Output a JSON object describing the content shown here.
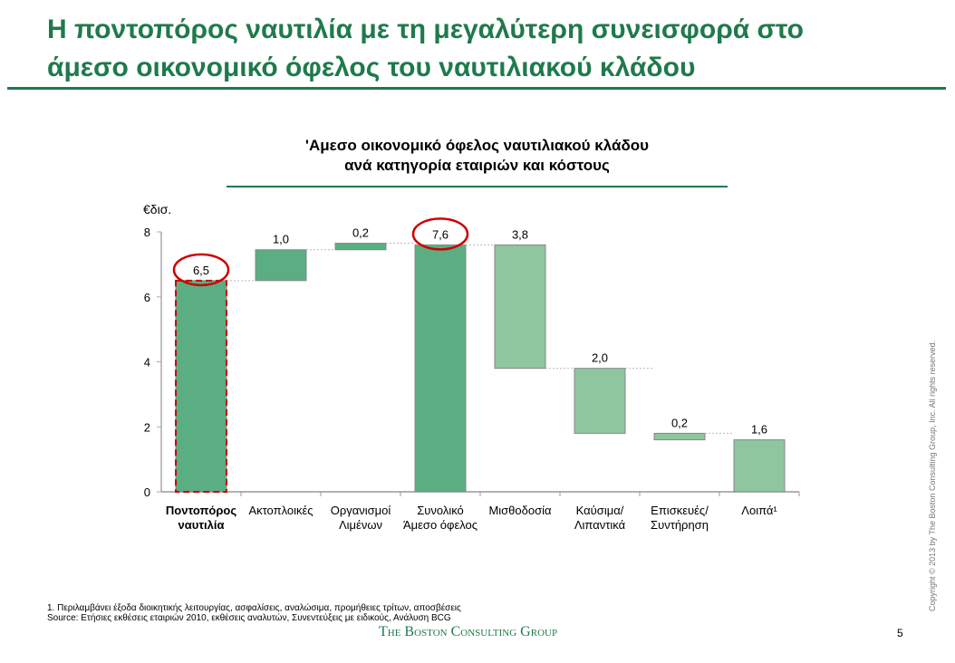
{
  "slide": {
    "title_line1": "Η ποντοπόρος ναυτιλία με τη μεγαλύτερη συνεισφορά στο",
    "title_line2": "άμεσο οικονομικό όφελος του ναυτιλιακού κλάδου",
    "footnote": "1. Περιλαμβάνει έξοδα διοικητικής λειτουργίας, ασφαλίσεις, αναλώσιμα, προμήθειες τρίτων, αποσβέσεις",
    "source": "Source: Ετήσιες εκθέσεις εταιριών 2010, εκθέσεις αναλυτών, Συνεντεύξεις με ειδικούς, Ανάλυση BCG",
    "logo": "The Boston Consulting Group",
    "page": "5",
    "copyright": "Copyright © 2013 by The Boston Consulting Group, Inc. All rights reserved."
  },
  "chart_data": {
    "type": "waterfall",
    "title_line1": "'Αμεσο οικονομικό όφελος ναυτιλιακού κλάδου",
    "title_line2": "ανά κατηγορία εταιριών και κόστους",
    "ylabel": "€δισ.",
    "ylim": [
      0,
      8
    ],
    "yticks": [
      0,
      2,
      4,
      6,
      8
    ],
    "grid": false,
    "colors": {
      "positive": "#5bae82",
      "negative": "#8fc59f",
      "highlight": "#cc0000"
    },
    "categories": [
      [
        "Ποντοπόρος",
        "ναυτιλία"
      ],
      [
        "Ακτοπλοικές",
        ""
      ],
      [
        "Οργανισμοί",
        "Λιμένων"
      ],
      [
        "Συνολικό",
        "Άμεσο όφελος"
      ],
      [
        "Μισθοδοσία",
        ""
      ],
      [
        "Καύσιμα/",
        "Λιπαντικά"
      ],
      [
        "Επισκευές/",
        "Συντήρηση"
      ],
      [
        "Λοιπά¹",
        ""
      ]
    ],
    "labels": [
      "6,5",
      "1,0",
      "0,2",
      "7,6",
      "3,8",
      "2,0",
      "0,2",
      "1,6"
    ],
    "bars": [
      {
        "start": 0,
        "end": 6.5,
        "kind": "positive",
        "highlight": true,
        "bold": true
      },
      {
        "start": 6.5,
        "end": 7.45,
        "kind": "positive"
      },
      {
        "start": 7.45,
        "end": 7.65,
        "kind": "positive"
      },
      {
        "start": 0,
        "end": 7.6,
        "kind": "positive",
        "highlight": true
      },
      {
        "start": 3.8,
        "end": 7.6,
        "kind": "negative"
      },
      {
        "start": 1.8,
        "end": 3.8,
        "kind": "negative"
      },
      {
        "start": 1.6,
        "end": 1.8,
        "kind": "negative"
      },
      {
        "start": 0,
        "end": 1.6,
        "kind": "negative"
      }
    ]
  }
}
